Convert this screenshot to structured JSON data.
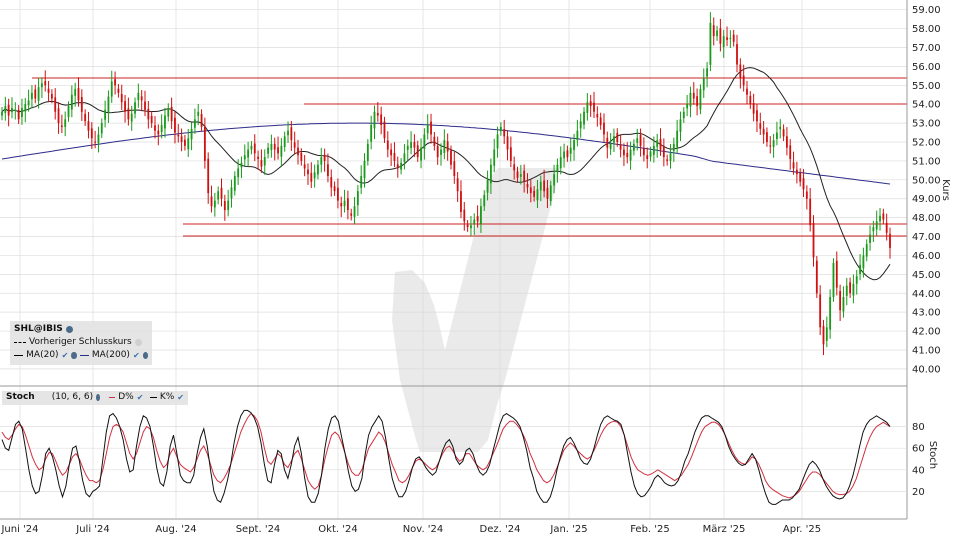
{
  "symbol": "SHL@IBIS",
  "legend_main": {
    "symbol_label": "SHL@IBIS",
    "prev_close_label": "Vorheriger Schlusskurs",
    "ma20_label": "MA(20)",
    "ma200_label": "MA(200)"
  },
  "legend_stoch": {
    "title": "Stoch",
    "params": "(10, 6, 6)",
    "d_label": "D%",
    "k_label": "K%"
  },
  "y_axis_title": "Kurs",
  "stoch_axis_title": "Stoch",
  "colors": {
    "up": "#1a9a1a",
    "down": "#d01010",
    "ma20": "#222222",
    "ma200": "#2b2b8a",
    "d_line": "#d03040",
    "k_line": "#111111",
    "support": "#cc2222",
    "grid": "#dddddd"
  },
  "chart_data": [
    {
      "type": "candlestick",
      "title": "SHL@IBIS",
      "ylabel": "Kurs",
      "ylim": [
        39.2,
        59.3
      ],
      "yticks": [
        40,
        41,
        42,
        43,
        44,
        45,
        46,
        47,
        48,
        49,
        50,
        51,
        52,
        53,
        54,
        55,
        56,
        57,
        58,
        59
      ],
      "ytick_labels": [
        "40.00",
        "41.00",
        "42.00",
        "43.00",
        "44.00",
        "45.00",
        "46.00",
        "47.00",
        "48.00",
        "49.00",
        "50.00",
        "51.00",
        "52.00",
        "53.00",
        "54.00",
        "55.00",
        "56.00",
        "57.00",
        "58.00",
        "59.00"
      ],
      "x_labels": [
        "Juni '24",
        "Juli '24",
        "Aug. '24",
        "Sept. '24",
        "Okt. '24",
        "Nov. '24",
        "Dez. '24",
        "Jan. '25",
        "Feb. '25",
        "März '25",
        "Apr. '25"
      ],
      "closes": [
        53.6,
        53.9,
        53.4,
        53.8,
        53.7,
        53.2,
        53.8,
        54.0,
        54.2,
        54.6,
        54.3,
        54.9,
        55.1,
        55.0,
        54.6,
        54.3,
        53.6,
        53.0,
        52.8,
        53.2,
        53.9,
        54.5,
        54.8,
        54.2,
        53.6,
        53.1,
        52.6,
        52.2,
        52.0,
        52.4,
        53.0,
        53.7,
        54.4,
        55.2,
        55.0,
        54.6,
        54.1,
        53.6,
        53.2,
        53.5,
        54.1,
        54.6,
        54.2,
        53.7,
        53.2,
        53.0,
        52.6,
        52.4,
        52.9,
        53.4,
        53.8,
        53.1,
        52.5,
        52.3,
        52.0,
        51.8,
        52.2,
        52.7,
        53.2,
        53.6,
        52.8,
        51.0,
        49.3,
        48.6,
        48.9,
        49.4,
        49.0,
        48.4,
        48.9,
        49.6,
        50.2,
        50.6,
        50.9,
        51.3,
        51.6,
        51.8,
        51.4,
        51.1,
        50.7,
        51.2,
        51.7,
        51.9,
        51.6,
        51.4,
        51.8,
        52.3,
        52.6,
        52.1,
        51.7,
        51.3,
        51.0,
        50.6,
        50.3,
        49.9,
        50.4,
        50.8,
        51.2,
        51.0,
        50.2,
        49.6,
        49.4,
        48.9,
        48.6,
        48.9,
        48.4,
        48.1,
        48.6,
        49.4,
        50.2,
        51.0,
        51.9,
        52.9,
        53.6,
        53.4,
        52.9,
        52.2,
        51.6,
        51.3,
        51.0,
        50.6,
        50.9,
        51.4,
        51.8,
        52.0,
        51.7,
        51.2,
        51.7,
        52.4,
        52.9,
        52.4,
        51.8,
        51.2,
        51.6,
        52.1,
        51.5,
        50.8,
        50.2,
        49.4,
        48.3,
        47.8,
        47.5,
        47.6,
        47.9,
        47.8,
        48.6,
        49.2,
        50.0,
        50.8,
        51.6,
        52.4,
        52.8,
        52.3,
        51.6,
        51.0,
        50.5,
        50.1,
        50.3,
        49.9,
        49.6,
        49.3,
        49.1,
        49.5,
        49.9,
        49.4,
        49.0,
        49.7,
        50.3,
        50.8,
        51.2,
        51.5,
        51.2,
        51.7,
        52.1,
        52.6,
        53.1,
        53.6,
        54.1,
        53.9,
        53.6,
        53.3,
        52.9,
        52.4,
        51.7,
        51.9,
        52.3,
        52.0,
        51.6,
        51.3,
        51.2,
        51.6,
        51.9,
        52.2,
        51.8,
        51.3,
        51.1,
        51.5,
        51.8,
        52.1,
        51.6,
        51.2,
        51.0,
        51.4,
        51.9,
        52.6,
        53.2,
        53.6,
        54.0,
        54.6,
        54.3,
        53.9,
        54.8,
        55.4,
        55.9,
        58.3,
        57.6,
        57.9,
        57.2,
        57.6,
        57.4,
        57.5,
        57.3,
        56.1,
        55.4,
        55.0,
        54.5,
        54.0,
        53.5,
        53.1,
        52.7,
        52.4,
        52.0,
        51.8,
        52.1,
        52.5,
        52.8,
        52.3,
        51.7,
        51.1,
        50.6,
        50.3,
        49.9,
        49.5,
        49.0,
        47.6,
        45.9,
        44.0,
        42.2,
        41.3,
        42.2,
        43.8,
        45.6,
        44.3,
        43.1,
        43.8,
        44.4,
        44.0,
        44.5,
        44.9,
        45.5,
        46.0,
        46.6,
        47.1,
        47.5,
        47.8,
        48.1,
        47.9,
        47.2,
        46.4
      ]
    },
    {
      "type": "line",
      "title": "Stoch",
      "ylabel": "Stoch",
      "ylim": [
        0,
        100
      ],
      "yticks": [
        20,
        40,
        60,
        80
      ],
      "ytick_labels": [
        "20",
        "40",
        "60",
        "80"
      ],
      "series": [
        {
          "name": "D%",
          "values": [
            75,
            70,
            68,
            72,
            78,
            82,
            80,
            72,
            62,
            52,
            45,
            40,
            42,
            50,
            56,
            55,
            48,
            40,
            35,
            38,
            45,
            52,
            55,
            50,
            42,
            35,
            30,
            30,
            28,
            30,
            40,
            55,
            70,
            80,
            82,
            80,
            75,
            65,
            55,
            50,
            55,
            65,
            75,
            80,
            78,
            70,
            58,
            48,
            42,
            45,
            55,
            60,
            52,
            45,
            42,
            40,
            38,
            42,
            50,
            58,
            62,
            55,
            45,
            35,
            30,
            28,
            32,
            38,
            45,
            55,
            65,
            75,
            82,
            88,
            92,
            90,
            85,
            75,
            60,
            48,
            45,
            50,
            55,
            52,
            45,
            42,
            48,
            55,
            58,
            50,
            40,
            30,
            25,
            22,
            25,
            35,
            50,
            62,
            72,
            75,
            72,
            65,
            55,
            45,
            38,
            35,
            35,
            40,
            50,
            60,
            65,
            70,
            75,
            72,
            65,
            55,
            45,
            38,
            30,
            28,
            30,
            35,
            42,
            48,
            50,
            48,
            45,
            42,
            40,
            42,
            48,
            55,
            60,
            62,
            58,
            52,
            48,
            50,
            55,
            55,
            50,
            45,
            42,
            40,
            42,
            48,
            55,
            62,
            70,
            78,
            82,
            85,
            85,
            82,
            78,
            72,
            65,
            55,
            48,
            40,
            35,
            30,
            28,
            30,
            35,
            42,
            50,
            58,
            62,
            65,
            62,
            58,
            55,
            52,
            50,
            52,
            58,
            65,
            72,
            78,
            82,
            84,
            85,
            84,
            80,
            72,
            62,
            52,
            45,
            40,
            38,
            36,
            35,
            36,
            38,
            40,
            38,
            36,
            34,
            32,
            30,
            32,
            35,
            40,
            45,
            52,
            60,
            68,
            75,
            80,
            82,
            84,
            84,
            82,
            78,
            72,
            65,
            58,
            52,
            48,
            46,
            45,
            48,
            52,
            50,
            45,
            38,
            30,
            25,
            22,
            20,
            18,
            16,
            15,
            14,
            15,
            17,
            20,
            25,
            30,
            35,
            38,
            38,
            36,
            32,
            28,
            24,
            20,
            18,
            17,
            17,
            18,
            20,
            25,
            32,
            42,
            52,
            62,
            70,
            76,
            80,
            82,
            84,
            82,
            80
          ]
        },
        {
          "name": "K%",
          "values": [
            68,
            60,
            58,
            70,
            82,
            85,
            78,
            60,
            40,
            25,
            18,
            20,
            35,
            55,
            60,
            52,
            40,
            25,
            15,
            25,
            45,
            60,
            62,
            48,
            30,
            18,
            15,
            20,
            22,
            25,
            50,
            75,
            90,
            92,
            88,
            80,
            68,
            50,
            38,
            40,
            62,
            80,
            90,
            88,
            80,
            62,
            42,
            28,
            25,
            38,
            62,
            72,
            55,
            35,
            30,
            28,
            28,
            35,
            55,
            70,
            78,
            62,
            40,
            20,
            12,
            10,
            18,
            30,
            45,
            65,
            80,
            90,
            95,
            95,
            93,
            88,
            80,
            65,
            45,
            30,
            28,
            45,
            58,
            55,
            40,
            32,
            45,
            62,
            70,
            55,
            32,
            15,
            10,
            10,
            18,
            35,
            60,
            78,
            88,
            90,
            85,
            70,
            55,
            38,
            25,
            20,
            22,
            32,
            55,
            72,
            80,
            85,
            90,
            85,
            70,
            50,
            32,
            22,
            15,
            15,
            20,
            30,
            42,
            50,
            52,
            48,
            42,
            38,
            35,
            38,
            48,
            58,
            65,
            68,
            62,
            50,
            45,
            48,
            58,
            60,
            55,
            45,
            38,
            35,
            38,
            45,
            58,
            70,
            82,
            90,
            92,
            90,
            88,
            85,
            80,
            70,
            58,
            42,
            32,
            20,
            14,
            10,
            10,
            15,
            25,
            40,
            52,
            62,
            68,
            70,
            65,
            58,
            50,
            46,
            45,
            50,
            60,
            72,
            82,
            88,
            90,
            88,
            86,
            85,
            82,
            72,
            55,
            38,
            25,
            18,
            15,
            16,
            20,
            25,
            32,
            35,
            32,
            28,
            26,
            25,
            26,
            30,
            38,
            48,
            55,
            65,
            75,
            82,
            88,
            90,
            90,
            88,
            86,
            84,
            80,
            72,
            62,
            55,
            50,
            46,
            44,
            45,
            50,
            55,
            50,
            40,
            28,
            18,
            10,
            8,
            8,
            10,
            12,
            12,
            12,
            14,
            18,
            22,
            30,
            38,
            45,
            48,
            45,
            40,
            32,
            25,
            20,
            16,
            14,
            13,
            14,
            18,
            25,
            35,
            48,
            62,
            75,
            82,
            86,
            88,
            90,
            88,
            86,
            84,
            80
          ]
        }
      ]
    }
  ]
}
